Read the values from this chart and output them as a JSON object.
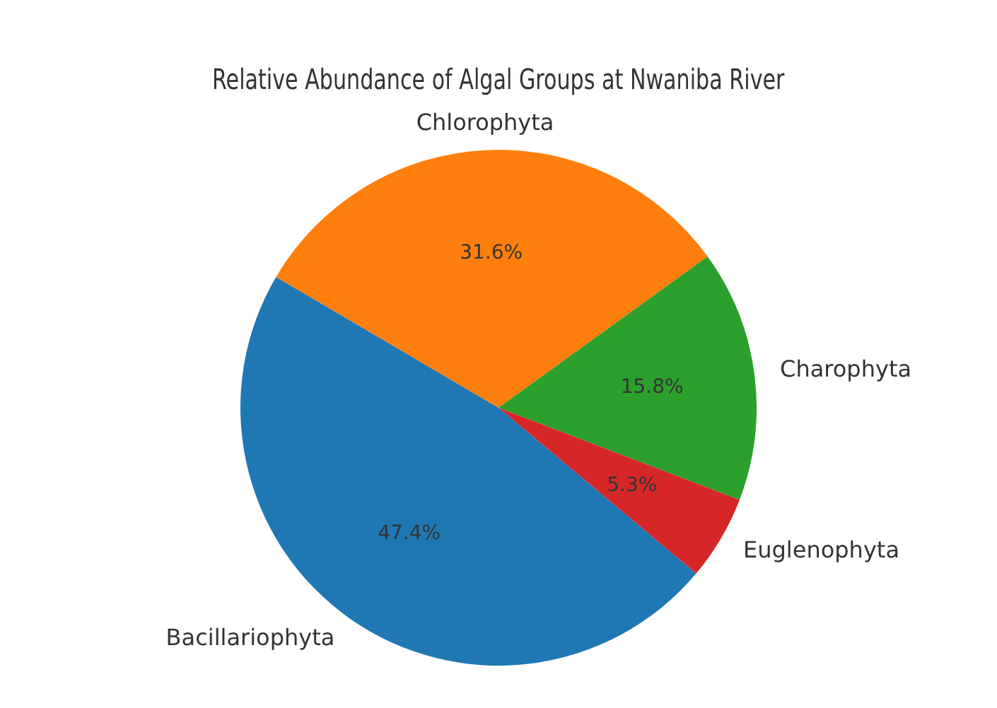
{
  "chart_data": {
    "type": "pie",
    "title": "Relative Abundance of Algal Groups at Nwaniba River",
    "categories": [
      "Bacillariophyta",
      "Chlorophyta",
      "Charophyta",
      "Euglenophyta"
    ],
    "values": [
      47.4,
      31.6,
      15.8,
      5.3
    ],
    "colors": [
      "#1f77b4",
      "#ff7f0e",
      "#2ca02c",
      "#d62728"
    ],
    "value_labels": [
      "47.4%",
      "31.6%",
      "15.8%",
      "5.3%"
    ],
    "legend": false
  }
}
